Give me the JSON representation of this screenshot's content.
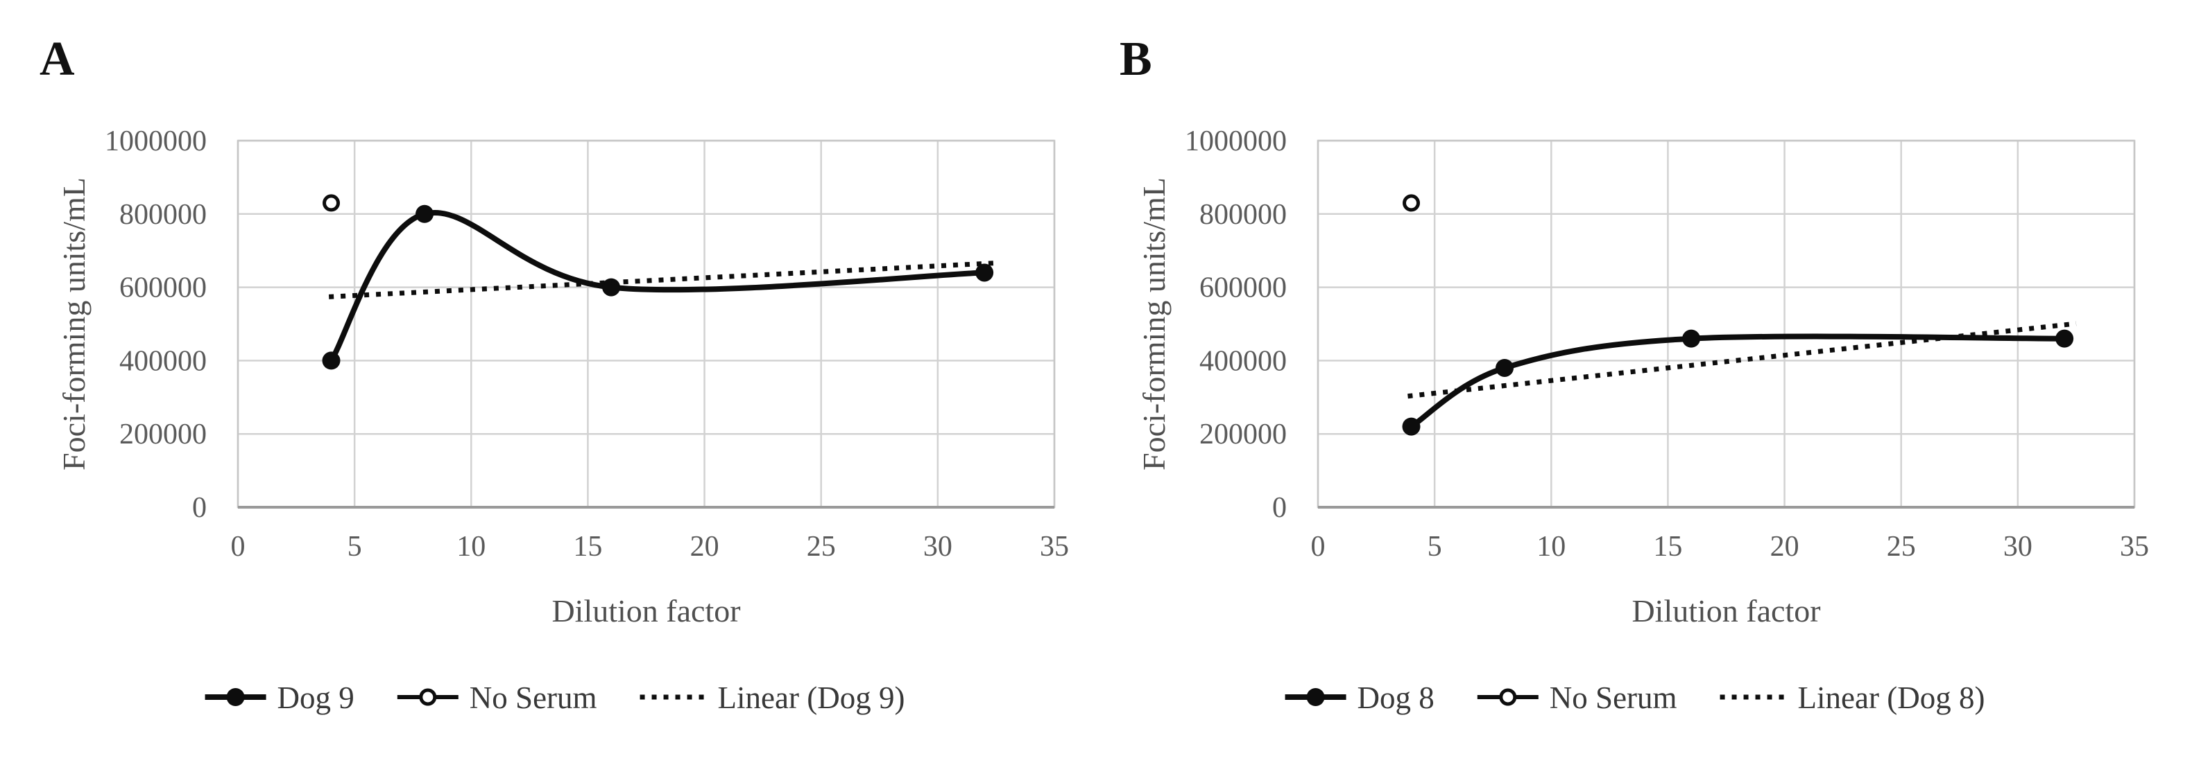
{
  "page": {
    "background": "#ffffff"
  },
  "figure": {
    "panel_labels": [
      "A",
      "B"
    ]
  },
  "chart_data": [
    {
      "type": "line",
      "panel_label": "A",
      "xlabel": "Dilution factor",
      "ylabel": "Foci-forming units/mL",
      "xlim": [
        0,
        35
      ],
      "xticks": [
        0,
        5,
        10,
        15,
        20,
        25,
        30,
        35
      ],
      "ylim": [
        0,
        1000000
      ],
      "yticks": [
        0,
        200000,
        400000,
        600000,
        800000,
        1000000
      ],
      "grid": true,
      "legend_position": "bottom",
      "series": [
        {
          "name": "Dog 9",
          "kind": "smooth_line",
          "marker": "filled_circle",
          "color": "#0d0d0d",
          "x": [
            4,
            8,
            16,
            32
          ],
          "y": [
            400000,
            800000,
            600000,
            640000
          ]
        },
        {
          "name": "No Serum",
          "kind": "scatter",
          "marker": "open_circle",
          "color": "#0d0d0d",
          "x": [
            4
          ],
          "y": [
            830000
          ]
        },
        {
          "name": "Linear (Dog 9)",
          "kind": "trendline",
          "style": "dotted",
          "color": "#0d0d0d",
          "x": [
            3.9,
            32.4
          ],
          "y": [
            574000,
            666000
          ]
        }
      ]
    },
    {
      "type": "line",
      "panel_label": "B",
      "xlabel": "Dilution factor",
      "ylabel": "Foci-forming units/mL",
      "xlim": [
        0,
        35
      ],
      "xticks": [
        0,
        5,
        10,
        15,
        20,
        25,
        30,
        35
      ],
      "ylim": [
        0,
        1000000
      ],
      "yticks": [
        0,
        200000,
        400000,
        600000,
        800000,
        1000000
      ],
      "grid": true,
      "legend_position": "bottom",
      "series": [
        {
          "name": "Dog 8",
          "kind": "smooth_line",
          "marker": "filled_circle",
          "color": "#0d0d0d",
          "x": [
            4,
            8,
            16,
            32
          ],
          "y": [
            220000,
            380000,
            460000,
            460000
          ]
        },
        {
          "name": "No Serum",
          "kind": "scatter",
          "marker": "open_circle",
          "color": "#0d0d0d",
          "x": [
            4
          ],
          "y": [
            830000
          ]
        },
        {
          "name": "Linear (Dog 8)",
          "kind": "trendline",
          "style": "dotted",
          "color": "#0d0d0d",
          "x": [
            3.85,
            32.5
          ],
          "y": [
            303000,
            501000
          ]
        }
      ]
    }
  ],
  "colors": {
    "gridline": "#d2d2d2",
    "plot_border": "#c6c6c6",
    "bottom_axis": "#9a9a9a",
    "tick_text": "#5a5a5a",
    "axis_title_text": "#4f4f4f",
    "legend_text": "#383838",
    "series_black": "#0d0d0d"
  }
}
